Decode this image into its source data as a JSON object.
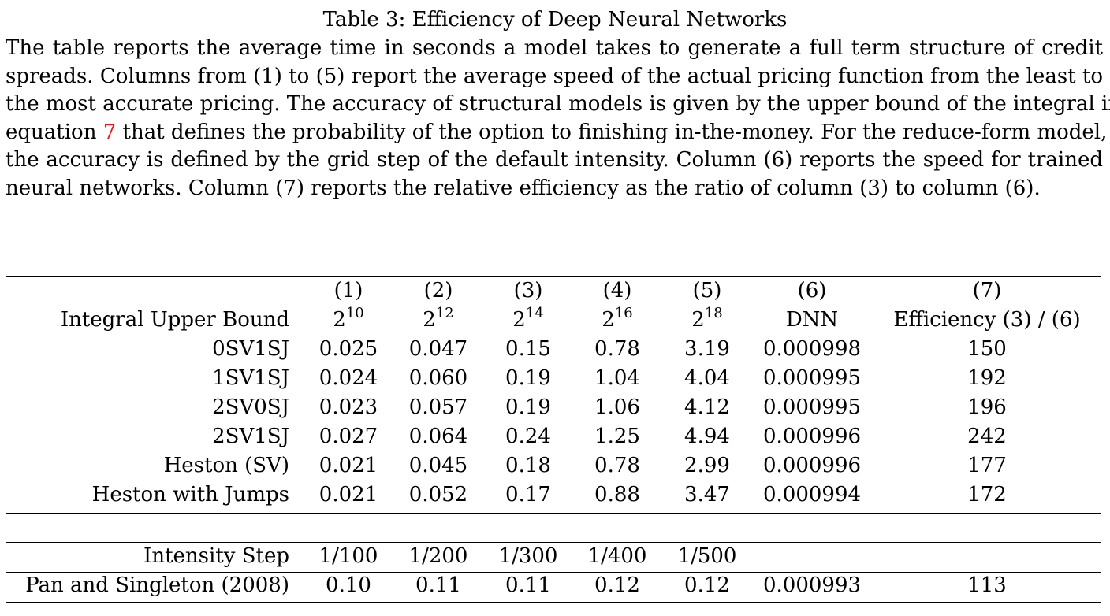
{
  "caption": {
    "title": "Table 3: Efficiency of Deep Neural Networks",
    "lines": [
      "The table reports the average time in seconds a model takes to generate a full term structure of credit",
      "spreads. Columns from (1) to (5) report the average speed of the actual pricing function from the least to",
      "the most accurate pricing. The accuracy of structural models is given by the upper bound of the integral in"
    ],
    "line4_before": "equation ",
    "line4_ref": "7",
    "line4_after": " that defines the probability of the option to finishing in-the-money. For the reduce-form model,",
    "line5": "the accuracy is defined by the grid step of the default intensity. Column (6) reports the speed for trained",
    "line6": "neural networks. Column (7) reports the relative efficiency as the ratio of column (3) to column (6)."
  },
  "table": {
    "column_numbers": [
      "(1)",
      "(2)",
      "(3)",
      "(4)",
      "(5)",
      "(6)",
      "(7)"
    ],
    "header_row": {
      "label": "Integral Upper Bound",
      "powers": [
        {
          "base": "2",
          "exp": "10"
        },
        {
          "base": "2",
          "exp": "12"
        },
        {
          "base": "2",
          "exp": "14"
        },
        {
          "base": "2",
          "exp": "16"
        },
        {
          "base": "2",
          "exp": "18"
        }
      ],
      "col6": "DNN",
      "col7": "Efficiency (3) / (6)"
    },
    "structural_rows": [
      {
        "label": "0SV1SJ",
        "values": [
          "0.025",
          "0.047",
          "0.15",
          "0.78",
          "3.19",
          "0.000998",
          "150"
        ]
      },
      {
        "label": "1SV1SJ",
        "values": [
          "0.024",
          "0.060",
          "0.19",
          "1.04",
          "4.04",
          "0.000995",
          "192"
        ]
      },
      {
        "label": "2SV0SJ",
        "values": [
          "0.023",
          "0.057",
          "0.19",
          "1.06",
          "4.12",
          "0.000995",
          "196"
        ]
      },
      {
        "label": "2SV1SJ",
        "values": [
          "0.027",
          "0.064",
          "0.24",
          "1.25",
          "4.94",
          "0.000996",
          "242"
        ]
      },
      {
        "label": "Heston (SV)",
        "values": [
          "0.021",
          "0.045",
          "0.18",
          "0.78",
          "2.99",
          "0.000996",
          "177"
        ]
      },
      {
        "label": "Heston with Jumps",
        "values": [
          "0.021",
          "0.052",
          "0.17",
          "0.88",
          "3.47",
          "0.000994",
          "172"
        ]
      }
    ],
    "intensity_row": {
      "label": "Intensity Step",
      "values": [
        "1/100",
        "1/200",
        "1/300",
        "1/400",
        "1/500"
      ]
    },
    "reduced_form_row": {
      "label": "Pan and Singleton (2008)",
      "values": [
        "0.10",
        "0.11",
        "0.11",
        "0.12",
        "0.12",
        "0.000993",
        "113"
      ]
    }
  }
}
